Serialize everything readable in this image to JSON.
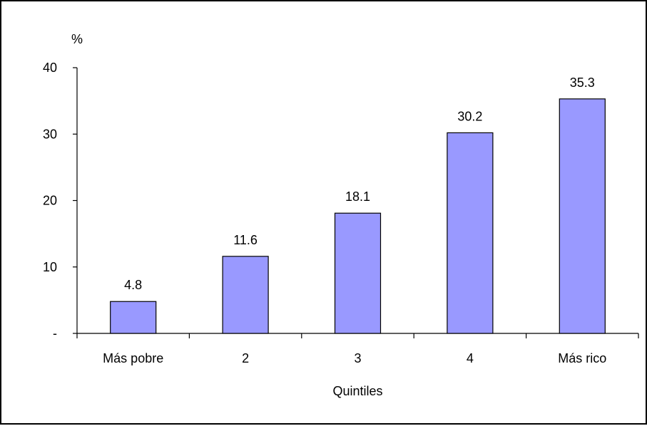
{
  "chart_data": {
    "type": "bar",
    "title": "",
    "ylabel": "%",
    "xlabel": "Quintiles",
    "categories": [
      "Más pobre",
      "2",
      "3",
      "4",
      "Más rico"
    ],
    "values": [
      4.8,
      11.6,
      18.1,
      30.2,
      35.3
    ],
    "data_labels": [
      "4.8",
      "11.6",
      "18.1",
      "30.2",
      "35.3"
    ],
    "ylim": [
      0,
      40
    ],
    "yticks": [
      0,
      10,
      20,
      30,
      40
    ],
    "ytick_labels": [
      "-",
      "10",
      "20",
      "30",
      "40"
    ],
    "grid": false,
    "legend": "none",
    "bar_color": "#9999ff",
    "bar_edge_color": "#000000"
  }
}
